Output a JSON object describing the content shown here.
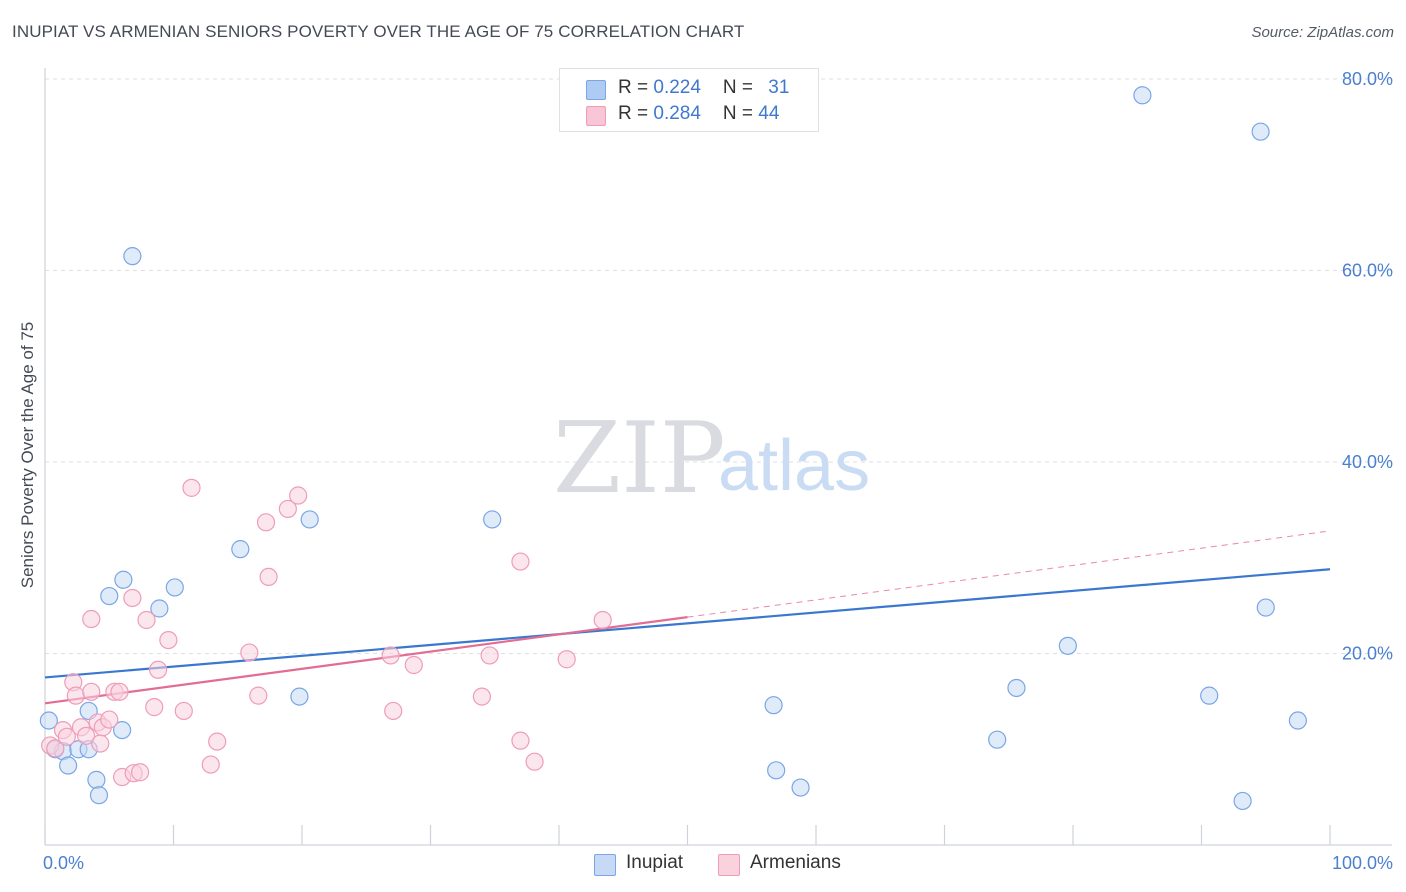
{
  "title": "INUPIAT VS ARMENIAN SENIORS POVERTY OVER THE AGE OF 75 CORRELATION CHART",
  "source": "Source: ZipAtlas.com",
  "watermark": {
    "zip": "ZIP",
    "atlas": "atlas"
  },
  "legend": {
    "rows": [
      {
        "r_label": "R = ",
        "r_value": "0.224",
        "n_label": "N = ",
        "n_value": "31",
        "color": "#aecbf3",
        "border": "#7aa6e6"
      },
      {
        "r_label": "R = ",
        "r_value": "0.284",
        "n_label": "N = ",
        "n_value": "44",
        "color": "#f8c6d6",
        "border": "#ee9db7"
      }
    ],
    "bottom": [
      {
        "label": "Inupiat",
        "color": "#c6daf6",
        "border": "#7aa6e6"
      },
      {
        "label": "Armenians",
        "color": "#f9d2de",
        "border": "#ee9db7"
      }
    ]
  },
  "chart_data": {
    "type": "scatter",
    "title": "INUPIAT VS ARMENIAN SENIORS POVERTY OVER THE AGE OF 75 CORRELATION CHART",
    "xlabel": "",
    "ylabel": "Seniors Poverty Over the Age of 75",
    "xlim": [
      0,
      100
    ],
    "ylim": [
      0,
      80
    ],
    "x_tick_labels": [
      "0.0%",
      "100.0%"
    ],
    "y_ticks": [
      20,
      40,
      60,
      80
    ],
    "y_tick_labels": [
      "20.0%",
      "40.0%",
      "60.0%",
      "80.0%"
    ],
    "grid": true,
    "legend_position": "top-center",
    "series": [
      {
        "name": "Inupiat",
        "color": "#7aa6e6",
        "fill": "#c6daf6",
        "trend": {
          "x": [
            0,
            100
          ],
          "y": [
            17.5,
            28.8
          ],
          "color": "#3a78d0",
          "style": "solid"
        },
        "points": [
          {
            "x": 0.3,
            "y": 13.0
          },
          {
            "x": 0.8,
            "y": 10.0
          },
          {
            "x": 1.4,
            "y": 9.8
          },
          {
            "x": 1.8,
            "y": 8.3
          },
          {
            "x": 2.6,
            "y": 10.0
          },
          {
            "x": 3.4,
            "y": 10.0
          },
          {
            "x": 3.4,
            "y": 14.0
          },
          {
            "x": 4.0,
            "y": 6.8
          },
          {
            "x": 4.2,
            "y": 5.2
          },
          {
            "x": 5.0,
            "y": 26.0
          },
          {
            "x": 6.1,
            "y": 27.7
          },
          {
            "x": 6.0,
            "y": 12.0
          },
          {
            "x": 6.8,
            "y": 61.5
          },
          {
            "x": 8.9,
            "y": 24.7
          },
          {
            "x": 10.1,
            "y": 26.9
          },
          {
            "x": 15.2,
            "y": 30.9
          },
          {
            "x": 19.8,
            "y": 15.5
          },
          {
            "x": 20.6,
            "y": 34.0
          },
          {
            "x": 34.8,
            "y": 34.0
          },
          {
            "x": 56.7,
            "y": 14.6
          },
          {
            "x": 56.9,
            "y": 7.8
          },
          {
            "x": 58.8,
            "y": 6.0
          },
          {
            "x": 74.1,
            "y": 11.0
          },
          {
            "x": 75.6,
            "y": 16.4
          },
          {
            "x": 79.6,
            "y": 20.8
          },
          {
            "x": 85.4,
            "y": 78.3
          },
          {
            "x": 90.6,
            "y": 15.6
          },
          {
            "x": 93.2,
            "y": 4.6
          },
          {
            "x": 94.6,
            "y": 74.5
          },
          {
            "x": 95.0,
            "y": 24.8
          },
          {
            "x": 97.5,
            "y": 13.0
          }
        ]
      },
      {
        "name": "Armenians",
        "color": "#ee9db7",
        "fill": "#f9d2de",
        "trend": {
          "x": [
            0,
            50
          ],
          "y": [
            14.8,
            23.8
          ],
          "x_dashed": [
            50,
            100
          ],
          "y_dashed": [
            23.8,
            32.8
          ],
          "color": "#e26d93",
          "style": "solid+dashed"
        },
        "points": [
          {
            "x": 0.4,
            "y": 10.4
          },
          {
            "x": 0.8,
            "y": 10.1
          },
          {
            "x": 1.4,
            "y": 12.0
          },
          {
            "x": 1.7,
            "y": 11.3
          },
          {
            "x": 2.2,
            "y": 17.0
          },
          {
            "x": 2.4,
            "y": 15.6
          },
          {
            "x": 2.8,
            "y": 12.3
          },
          {
            "x": 3.2,
            "y": 11.4
          },
          {
            "x": 3.6,
            "y": 16.0
          },
          {
            "x": 3.6,
            "y": 23.6
          },
          {
            "x": 4.1,
            "y": 12.8
          },
          {
            "x": 4.3,
            "y": 10.6
          },
          {
            "x": 4.5,
            "y": 12.3
          },
          {
            "x": 5.0,
            "y": 13.1
          },
          {
            "x": 5.4,
            "y": 16.0
          },
          {
            "x": 5.8,
            "y": 16.0
          },
          {
            "x": 6.0,
            "y": 7.1
          },
          {
            "x": 6.8,
            "y": 25.8
          },
          {
            "x": 6.9,
            "y": 7.5
          },
          {
            "x": 7.4,
            "y": 7.6
          },
          {
            "x": 7.9,
            "y": 23.5
          },
          {
            "x": 8.5,
            "y": 14.4
          },
          {
            "x": 8.8,
            "y": 18.3
          },
          {
            "x": 9.6,
            "y": 21.4
          },
          {
            "x": 10.8,
            "y": 14.0
          },
          {
            "x": 11.4,
            "y": 37.3
          },
          {
            "x": 12.9,
            "y": 8.4
          },
          {
            "x": 13.4,
            "y": 10.8
          },
          {
            "x": 15.9,
            "y": 20.1
          },
          {
            "x": 16.6,
            "y": 15.6
          },
          {
            "x": 17.2,
            "y": 33.7
          },
          {
            "x": 17.4,
            "y": 28.0
          },
          {
            "x": 18.9,
            "y": 35.1
          },
          {
            "x": 19.7,
            "y": 36.5
          },
          {
            "x": 26.9,
            "y": 19.8
          },
          {
            "x": 27.1,
            "y": 14.0
          },
          {
            "x": 28.7,
            "y": 18.8
          },
          {
            "x": 34.0,
            "y": 15.5
          },
          {
            "x": 34.6,
            "y": 19.8
          },
          {
            "x": 37.0,
            "y": 29.6
          },
          {
            "x": 37.0,
            "y": 10.9
          },
          {
            "x": 38.1,
            "y": 8.7
          },
          {
            "x": 40.6,
            "y": 19.4
          },
          {
            "x": 43.4,
            "y": 23.5
          }
        ]
      }
    ]
  }
}
